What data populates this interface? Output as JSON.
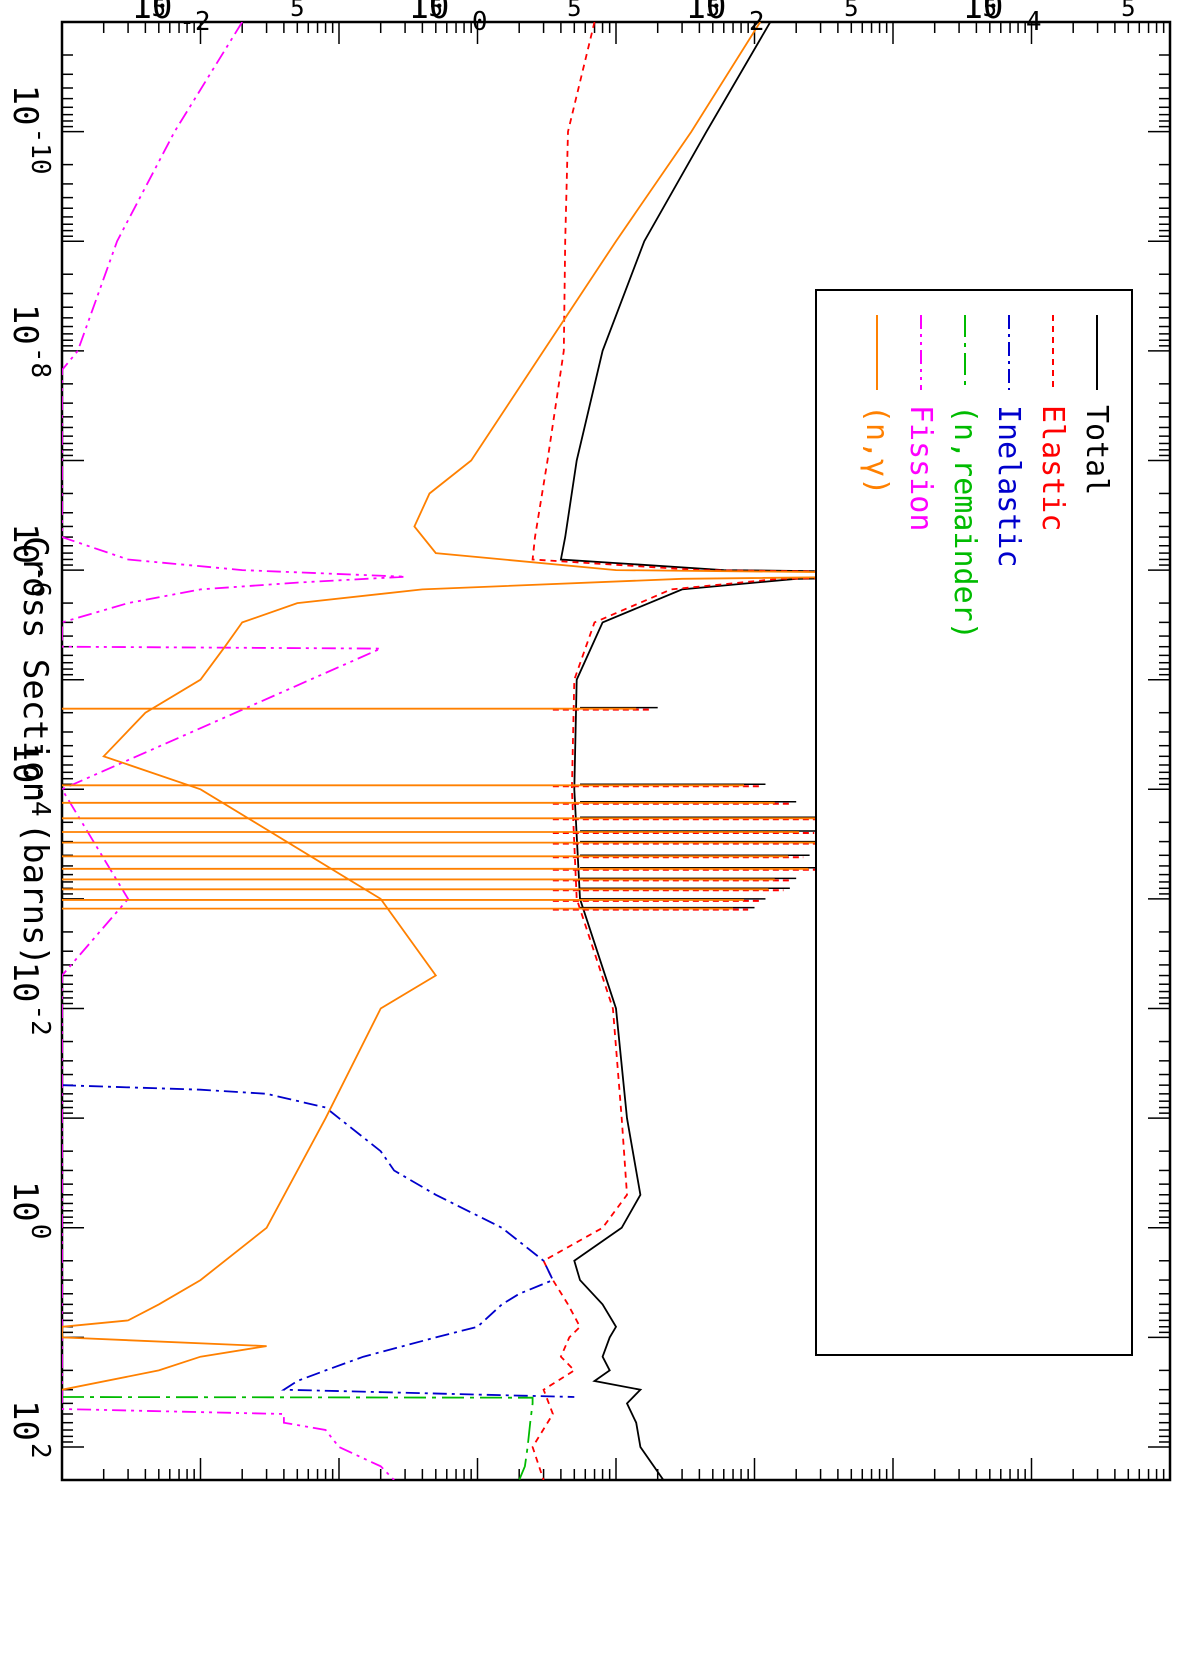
{
  "chart_data": {
    "type": "line",
    "orientation": "rotated-90",
    "ylabel": "Cross Section (barns)",
    "xlabel": "",
    "xscale": "log",
    "yscale": "log",
    "xlim": [
      1e-11,
      200
    ],
    "ylim": [
      0.001,
      100000
    ],
    "x_ticks": [
      {
        "label": "10",
        "exp": "-10"
      },
      {
        "label": "10",
        "exp": "-8"
      },
      {
        "label": "10",
        "exp": "-6"
      },
      {
        "label": "10",
        "exp": "-4"
      },
      {
        "label": "10",
        "exp": "-2"
      },
      {
        "label": "10",
        "exp": "0"
      },
      {
        "label": "10",
        "exp": "2"
      }
    ],
    "y_ticks": [
      {
        "label": "10",
        "exp": "-2"
      },
      {
        "label": "10",
        "exp": "0"
      },
      {
        "label": "10",
        "exp": "2"
      },
      {
        "label": "10",
        "exp": "4"
      }
    ],
    "y_minor_label": "5",
    "legend_position": "top-left",
    "series": [
      {
        "name": "Total",
        "color": "#000000",
        "dash": "",
        "x": [
          1e-11,
          1e-10,
          1e-09,
          1e-08,
          1e-07,
          5e-07,
          8e-07,
          1e-06,
          1.1e-06,
          1.2e-06,
          1.5e-06,
          3e-06,
          1e-05,
          0.0001,
          0.001,
          0.01,
          0.1,
          0.5,
          1,
          2,
          3,
          5,
          8,
          10,
          15,
          20,
          25,
          30,
          40,
          60,
          100,
          200
        ],
        "y": [
          130,
          45,
          16,
          8,
          5.2,
          4.3,
          4.0,
          60,
          30000,
          200,
          30,
          8,
          5.2,
          5.0,
          5.5,
          10,
          12,
          15,
          11,
          5.0,
          5.5,
          8,
          10,
          9,
          8,
          9,
          7,
          15,
          12,
          14,
          15,
          22
        ]
      },
      {
        "name": "Elastic",
        "color": "#ff0000",
        "dash": "6,5",
        "x": [
          1e-11,
          1e-10,
          1e-09,
          1e-08,
          1e-07,
          5e-07,
          8e-07,
          1e-06,
          1.1e-06,
          1.2e-06,
          1.5e-06,
          3e-06,
          1e-05,
          0.0001,
          0.001,
          0.01,
          0.1,
          0.5,
          1,
          2,
          3,
          5,
          8,
          10,
          15,
          20,
          30,
          50,
          100,
          200
        ],
        "y": [
          7,
          4.5,
          4.3,
          4.2,
          3.2,
          2.6,
          2.5,
          40,
          25000,
          150,
          25,
          7,
          5.0,
          4.8,
          5.2,
          9.5,
          11,
          12,
          8,
          3.0,
          3.5,
          4.5,
          5.5,
          4.6,
          4.0,
          5.0,
          3.0,
          3.5,
          2.5,
          3.0
        ]
      },
      {
        "name": "Inelastic",
        "color": "#0000cc",
        "dash": "14,5,3,5",
        "x": [
          0.05,
          0.055,
          0.06,
          0.08,
          0.1,
          0.2,
          0.3,
          0.5,
          1,
          2,
          3,
          4,
          5,
          8,
          10,
          15,
          20,
          25,
          30,
          35
        ],
        "y": [
          0.001,
          0.01,
          0.03,
          0.08,
          0.1,
          0.2,
          0.25,
          0.5,
          1.5,
          3.0,
          3.5,
          2.0,
          1.5,
          1.0,
          0.5,
          0.15,
          0.08,
          0.05,
          0.04,
          5.0
        ]
      },
      {
        "name": "(n,remainder)",
        "color": "#00bb00",
        "dash": "22,6,4,6",
        "x": [
          35,
          35.5,
          40,
          60,
          100,
          150,
          200
        ],
        "y": [
          0.001,
          2.5,
          2.5,
          2.4,
          2.3,
          2.2,
          2.0
        ]
      },
      {
        "name": "Fission",
        "color": "#ff00ff",
        "dash": "14,5,3,5,3,5",
        "x": [
          1e-11,
          1e-10,
          1e-09,
          1e-08,
          1.5e-08,
          5e-07,
          8e-07,
          1e-06,
          1.15e-06,
          1.3e-06,
          1.5e-06,
          2e-06,
          3e-06,
          5e-06,
          5.2e-06,
          0.0001,
          0.001,
          0.005,
          45,
          50,
          60,
          70,
          100,
          150,
          200
        ],
        "y": [
          0.02,
          0.0065,
          0.0025,
          0.0013,
          0.001,
          0.001,
          0.003,
          0.02,
          0.3,
          0.05,
          0.01,
          0.003,
          0.001,
          0.001,
          0.2,
          0.001,
          0.003,
          0.001,
          0.001,
          0.04,
          0.04,
          0.08,
          0.1,
          0.2,
          0.25
        ]
      },
      {
        "name": "(n,γ)",
        "color": "#ff8000",
        "dash": "",
        "x": [
          1e-11,
          1e-10,
          1e-09,
          1e-08,
          1e-07,
          2e-07,
          4e-07,
          7e-07,
          1e-06,
          1.1e-06,
          1.2e-06,
          1.5e-06,
          2e-06,
          3e-06,
          5e-06,
          1e-05,
          2e-05,
          5e-05,
          0.0001,
          0.001,
          0.005,
          0.01,
          0.1,
          1,
          3,
          5,
          7,
          8,
          9,
          10,
          12,
          15,
          20,
          30
        ],
        "y": [
          110,
          35,
          10,
          3.0,
          0.9,
          0.45,
          0.35,
          0.5,
          10,
          20000,
          30,
          0.4,
          0.05,
          0.02,
          0.015,
          0.01,
          0.004,
          0.002,
          0.01,
          0.2,
          0.5,
          0.2,
          0.08,
          0.03,
          0.01,
          0.005,
          0.003,
          0.001,
          0.001,
          0.001,
          0.03,
          0.01,
          0.005,
          0.001
        ]
      }
    ]
  }
}
